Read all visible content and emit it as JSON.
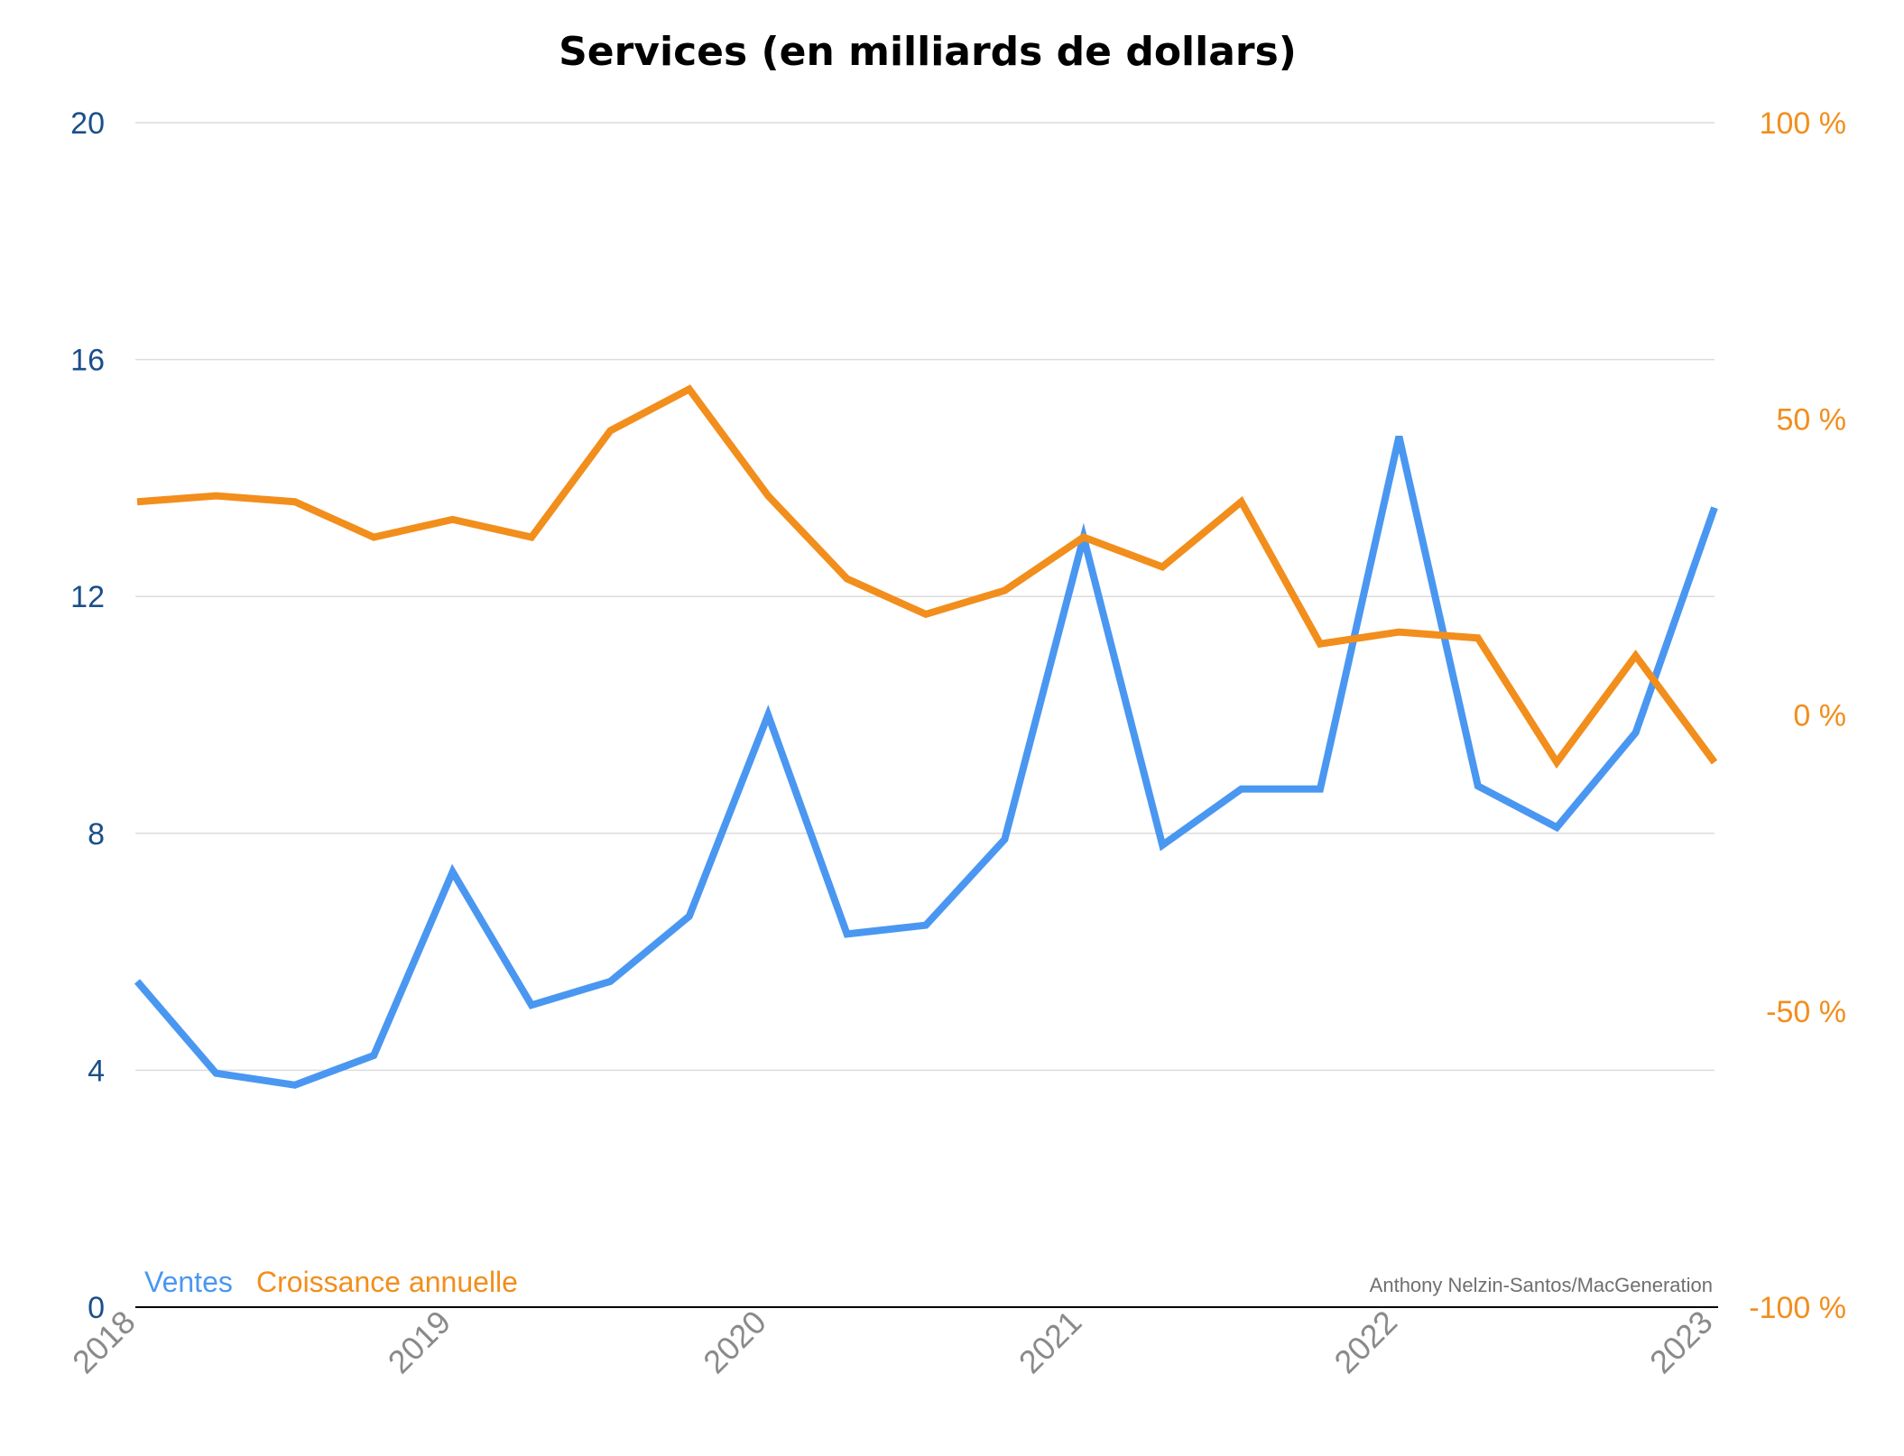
{
  "chart_data": {
    "type": "line",
    "title": "Services (en milliards de dollars)",
    "x": [
      "2018 Q1",
      "2018 Q2",
      "2018 Q3",
      "2018 Q4",
      "2019 Q1",
      "2019 Q2",
      "2019 Q3",
      "2019 Q4",
      "2020 Q1",
      "2020 Q2",
      "2020 Q3",
      "2020 Q4",
      "2021 Q1",
      "2021 Q2",
      "2021 Q3",
      "2021 Q4",
      "2022 Q1",
      "2022 Q2",
      "2022 Q3",
      "2022 Q4",
      "2023 Q1"
    ],
    "x_tick_labels": [
      "2018",
      "2019",
      "2020",
      "2021",
      "2022",
      "2023"
    ],
    "y_left": {
      "ylim": [
        0,
        20
      ],
      "ticks": [
        "0",
        "4",
        "8",
        "12",
        "16",
        "20"
      ],
      "tick_values": [
        0,
        4,
        8,
        12,
        16,
        20
      ],
      "color": "#1b4f8a"
    },
    "y_right": {
      "ylim": [
        -100,
        100
      ],
      "ticks": [
        "-100 %",
        "-50 %",
        "0 %",
        "50 %",
        "100 %"
      ],
      "tick_values": [
        -100,
        -50,
        0,
        50,
        100
      ],
      "color": "#f28e1c"
    },
    "series": [
      {
        "name": "Ventes",
        "axis": "left",
        "color": "#4a97f1",
        "values": [
          5.5,
          3.95,
          3.75,
          4.25,
          7.35,
          5.1,
          5.5,
          6.6,
          10.0,
          6.3,
          6.45,
          7.9,
          13.0,
          7.8,
          8.75,
          8.75,
          14.7,
          8.8,
          8.1,
          9.7,
          13.5
        ]
      },
      {
        "name": "Croissance annuelle",
        "axis": "right",
        "color": "#f28e1c",
        "values": [
          36,
          37,
          36,
          30,
          33,
          30,
          48,
          55,
          37,
          23,
          17,
          21,
          30,
          25,
          36,
          12,
          14,
          13,
          -8,
          10,
          -8
        ]
      }
    ],
    "grid": true,
    "legend": "bottom-left",
    "credit": "Anthony Nelzin-Santos/MacGeneration"
  }
}
